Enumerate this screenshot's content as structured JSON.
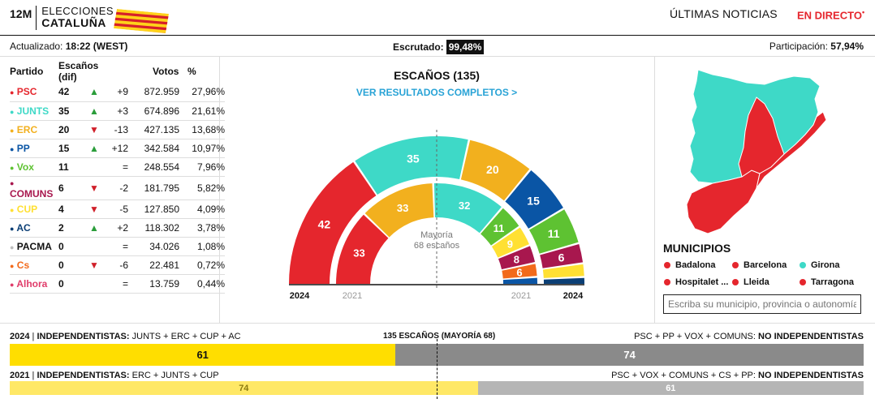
{
  "header": {
    "logo_prefix": "12M",
    "logo_line1": "ELECCIONES",
    "logo_line2": "CATALUÑA",
    "news": "ÚLTIMAS NOTICIAS",
    "live": "EN DIRECTO",
    "live_mark": "•"
  },
  "subheader": {
    "updated_label": "Actualizado:",
    "updated_value": "18:22 (WEST)",
    "scrutinized_label": "Escrutado:",
    "scrutinized_value": "99,48%",
    "participation_label": "Participación:",
    "participation_value": "57,94%"
  },
  "table": {
    "headers": [
      "Partido",
      "Escaños (dif)",
      "Votos",
      "%"
    ],
    "rows": [
      {
        "party": "PSC",
        "color": "#e5262d",
        "seats": "42",
        "arrow": "up",
        "dif": "+9",
        "votes": "872.959",
        "pct": "27,96%"
      },
      {
        "party": "JUNTS",
        "color": "#3ed9c7",
        "seats": "35",
        "arrow": "up",
        "dif": "+3",
        "votes": "674.896",
        "pct": "21,61%"
      },
      {
        "party": "ERC",
        "color": "#f2b01e",
        "seats": "20",
        "arrow": "down",
        "dif": "-13",
        "votes": "427.135",
        "pct": "13,68%"
      },
      {
        "party": "PP",
        "color": "#0a55a5",
        "seats": "15",
        "arrow": "up",
        "dif": "+12",
        "votes": "342.584",
        "pct": "10,97%"
      },
      {
        "party": "Vox",
        "color": "#5ec232",
        "seats": "11",
        "arrow": "none",
        "dif": "=",
        "votes": "248.554",
        "pct": "7,96%"
      },
      {
        "party": "COMUNS",
        "color": "#a8174e",
        "seats": "6",
        "arrow": "down",
        "dif": "-2",
        "votes": "181.795",
        "pct": "5,82%"
      },
      {
        "party": "CUP",
        "color": "#ffe033",
        "seats": "4",
        "arrow": "down",
        "dif": "-5",
        "votes": "127.850",
        "pct": "4,09%"
      },
      {
        "party": "AC",
        "color": "#0b3f75",
        "seats": "2",
        "arrow": "up",
        "dif": "+2",
        "votes": "118.302",
        "pct": "3,78%"
      },
      {
        "party": "PACMA",
        "color": "#bdbdbd",
        "seats": "0",
        "arrow": "none",
        "dif": "=",
        "votes": "34.026",
        "pct": "1,08%"
      },
      {
        "party": "Cs",
        "color": "#f26a1b",
        "seats": "0",
        "arrow": "down",
        "dif": "-6",
        "votes": "22.481",
        "pct": "0,72%"
      },
      {
        "party": "Alhora",
        "color": "#e03c6a",
        "seats": "0",
        "arrow": "none",
        "dif": "=",
        "votes": "13.759",
        "pct": "0,44%"
      }
    ]
  },
  "parliament": {
    "title": "ESCAÑOS (135)",
    "link": "VER RESULTADOS COMPLETOS >",
    "majority_l1": "Mayoría",
    "majority_l2": "68 escaños",
    "year_outer": "2024",
    "year_inner": "2021"
  },
  "chart_data": {
    "type": "bar",
    "title": "ESCAÑOS (135)",
    "total_seats": 135,
    "majority": 68,
    "series": [
      {
        "name": "2024",
        "categories": [
          "PSC",
          "JUNTS",
          "ERC",
          "PP",
          "Vox",
          "COMUNS",
          "CUP",
          "AC"
        ],
        "values": [
          42,
          35,
          20,
          15,
          11,
          6,
          4,
          2
        ],
        "colors": [
          "#e5262d",
          "#3ed9c7",
          "#f2b01e",
          "#0a55a5",
          "#5ec232",
          "#a8174e",
          "#ffe033",
          "#0b3f75"
        ]
      },
      {
        "name": "2021",
        "categories": [
          "PSC",
          "ERC",
          "JUNTS",
          "Vox",
          "CUP",
          "COMUNS",
          "Cs",
          "PP"
        ],
        "values": [
          33,
          33,
          32,
          11,
          9,
          8,
          6,
          3
        ],
        "colors": [
          "#e5262d",
          "#f2b01e",
          "#3ed9c7",
          "#5ec232",
          "#ffe033",
          "#a8174e",
          "#f26a1b",
          "#0a55a5"
        ]
      }
    ]
  },
  "municipios": {
    "title": "MUNICIPIOS",
    "items": [
      {
        "name": "Badalona",
        "color": "#e5262d"
      },
      {
        "name": "Barcelona",
        "color": "#e5262d"
      },
      {
        "name": "Girona",
        "color": "#3ed9c7"
      },
      {
        "name": "Hospitalet ...",
        "color": "#e5262d"
      },
      {
        "name": "Lleida",
        "color": "#e5262d"
      },
      {
        "name": "Tarragona",
        "color": "#e5262d"
      }
    ],
    "search_placeholder": "Escriba su municipio, provincia o autonomía",
    "map_colors": {
      "junts": "#3ed9c7",
      "psc": "#e5262d"
    }
  },
  "blocs": {
    "center_label": "135 ESCAÑOS (MAYORÍA 68)",
    "y2024": {
      "left_year": "2024",
      "left_bold": "INDEPENDENTISTAS:",
      "left_parties": "JUNTS + ERC + CUP + AC",
      "right_parties": "PSC + PP + VOX + COMUNS:",
      "right_bold": "NO INDEPENDENTISTAS",
      "indep": 61,
      "no_indep": 74,
      "indep_label": "61",
      "no_indep_label": "74"
    },
    "y2021": {
      "left_year": "2021",
      "left_bold": "INDEPENDENTISTAS:",
      "left_parties": "ERC + JUNTS + CUP",
      "right_parties": "PSC + VOX + COMUNS + CS + PP:",
      "right_bold": "NO INDEPENDENTISTAS",
      "indep": 74,
      "no_indep": 61,
      "indep_label": "74",
      "no_indep_label": "61"
    }
  }
}
